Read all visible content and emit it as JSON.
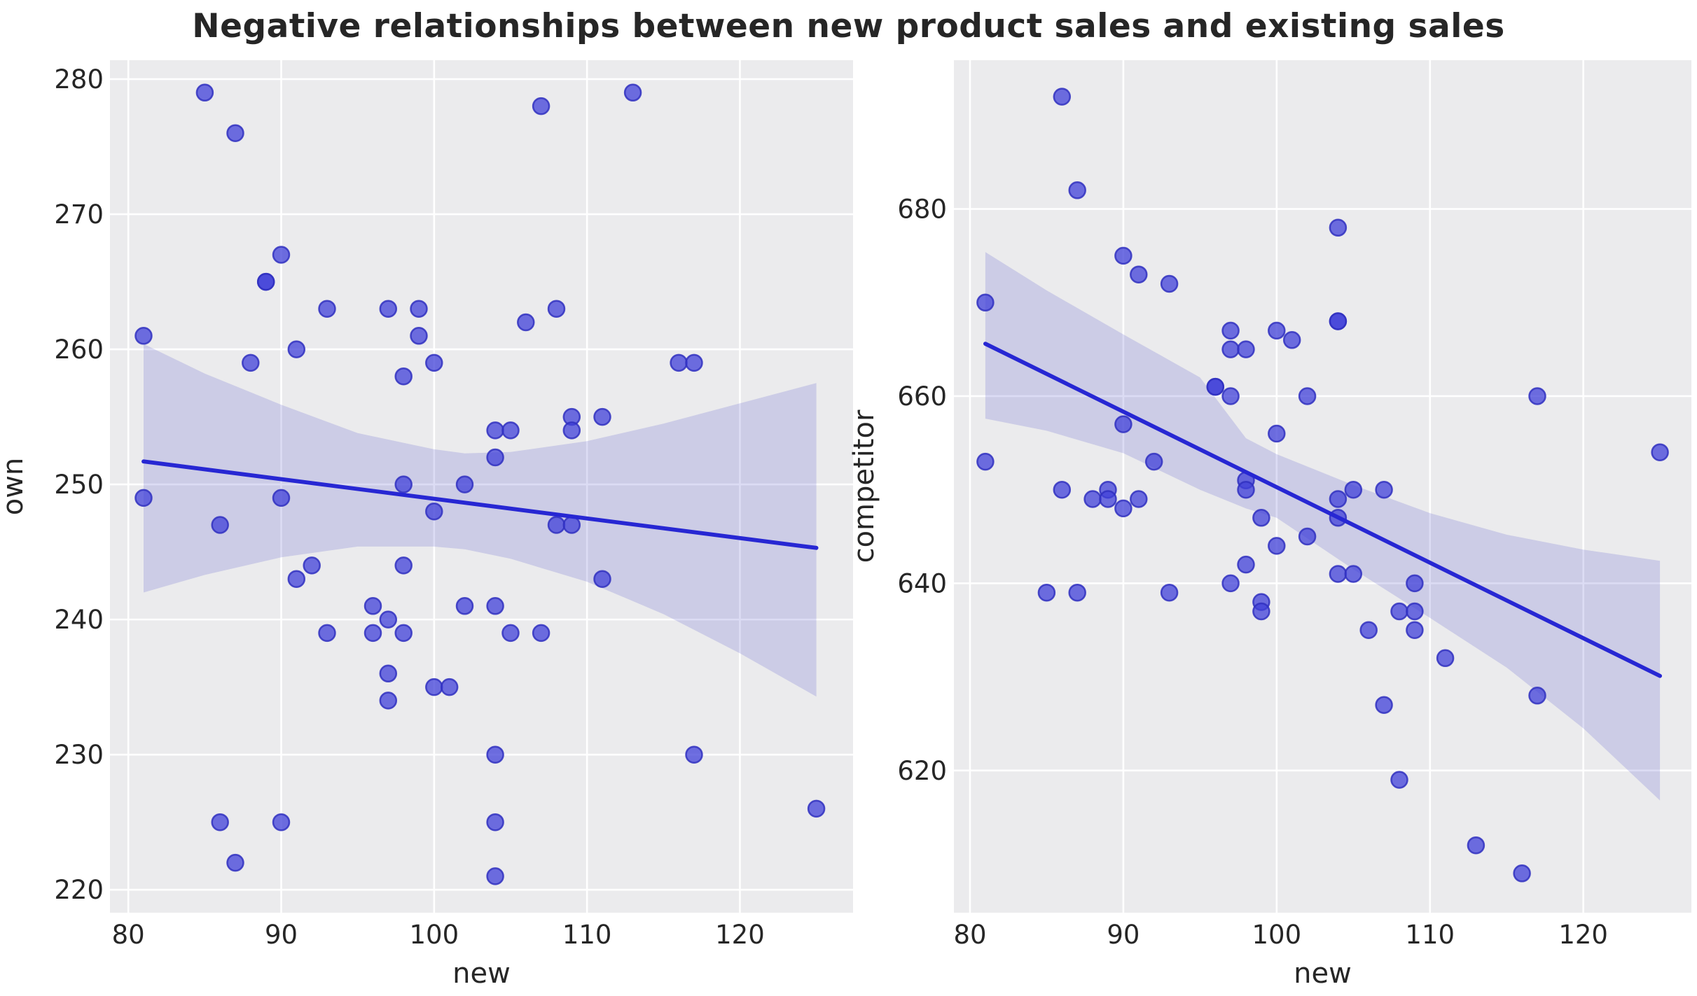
{
  "title": "Negative relationships between new product sales and existing sales",
  "style": {
    "figure_background": "#ffffff",
    "axes_background": "#ebebed",
    "grid_color": "#ffffff",
    "dot_color": "#4040d8",
    "dot_edge_color": "#3030c0",
    "line_color": "#2727d3",
    "band_color": "#6060cf",
    "text_color": "#262626"
  },
  "chart_data": [
    {
      "type": "scatter",
      "name": "own-vs-new",
      "xlabel": "new",
      "ylabel": "own",
      "xlim": [
        78.8,
        127.4
      ],
      "ylim": [
        218.3,
        281.4
      ],
      "xticks": [
        80,
        90,
        100,
        110,
        120
      ],
      "yticks": [
        220,
        230,
        240,
        250,
        260,
        270,
        280
      ],
      "grid": true,
      "legend": null,
      "points": [
        [
          81,
          261
        ],
        [
          81,
          249
        ],
        [
          85,
          279
        ],
        [
          86,
          247
        ],
        [
          86,
          225
        ],
        [
          87,
          276
        ],
        [
          87,
          222
        ],
        [
          88,
          259
        ],
        [
          89,
          265
        ],
        [
          89,
          265
        ],
        [
          90,
          267
        ],
        [
          90,
          249
        ],
        [
          90,
          225
        ],
        [
          91,
          260
        ],
        [
          91,
          243
        ],
        [
          92,
          244
        ],
        [
          93,
          263
        ],
        [
          93,
          239
        ],
        [
          96,
          241
        ],
        [
          96,
          239
        ],
        [
          97,
          263
        ],
        [
          97,
          240
        ],
        [
          97,
          236
        ],
        [
          97,
          234
        ],
        [
          98,
          258
        ],
        [
          98,
          250
        ],
        [
          98,
          244
        ],
        [
          98,
          239
        ],
        [
          99,
          263
        ],
        [
          99,
          261
        ],
        [
          100,
          259
        ],
        [
          100,
          248
        ],
        [
          100,
          235
        ],
        [
          101,
          235
        ],
        [
          102,
          250
        ],
        [
          102,
          241
        ],
        [
          104,
          254
        ],
        [
          104,
          252
        ],
        [
          104,
          241
        ],
        [
          104,
          230
        ],
        [
          104,
          225
        ],
        [
          104,
          221
        ],
        [
          105,
          254
        ],
        [
          105,
          239
        ],
        [
          106,
          262
        ],
        [
          107,
          278
        ],
        [
          107,
          239
        ],
        [
          108,
          263
        ],
        [
          108,
          247
        ],
        [
          109,
          255
        ],
        [
          109,
          254
        ],
        [
          109,
          247
        ],
        [
          111,
          255
        ],
        [
          111,
          243
        ],
        [
          113,
          279
        ],
        [
          116,
          259
        ],
        [
          117,
          259
        ],
        [
          117,
          230
        ],
        [
          125,
          226
        ]
      ],
      "regression_line": {
        "x1": 81,
        "y1": 251.7,
        "x2": 125,
        "y2": 245.3
      },
      "ci_band": {
        "x": [
          81,
          85,
          90,
          95,
          100,
          102,
          105,
          110,
          115,
          120,
          125
        ],
        "upper": [
          260.4,
          258.2,
          255.9,
          253.8,
          252.6,
          252.3,
          252.4,
          253.2,
          254.5,
          256.0,
          257.5
        ],
        "lower": [
          242.0,
          243.3,
          244.6,
          245.4,
          245.4,
          245.2,
          244.5,
          242.8,
          240.4,
          237.5,
          234.3
        ]
      }
    },
    {
      "type": "scatter",
      "name": "competitor-vs-new",
      "xlabel": "new",
      "ylabel": "competitor",
      "xlim": [
        78.95,
        127.05
      ],
      "ylim": [
        604.8,
        695.9
      ],
      "xticks": [
        80,
        90,
        100,
        110,
        120
      ],
      "yticks": [
        620,
        640,
        660,
        680
      ],
      "grid": true,
      "legend": null,
      "points": [
        [
          81,
          670
        ],
        [
          81,
          653
        ],
        [
          85,
          639
        ],
        [
          86,
          692
        ],
        [
          86,
          650
        ],
        [
          87,
          682
        ],
        [
          87,
          639
        ],
        [
          88,
          649
        ],
        [
          89,
          650
        ],
        [
          89,
          649
        ],
        [
          90,
          675
        ],
        [
          90,
          657
        ],
        [
          90,
          648
        ],
        [
          91,
          673
        ],
        [
          91,
          649
        ],
        [
          92,
          653
        ],
        [
          93,
          672
        ],
        [
          93,
          639
        ],
        [
          96,
          661
        ],
        [
          96,
          661
        ],
        [
          97,
          667
        ],
        [
          97,
          665
        ],
        [
          97,
          660
        ],
        [
          97,
          640
        ],
        [
          98,
          665
        ],
        [
          98,
          651
        ],
        [
          98,
          650
        ],
        [
          98,
          642
        ],
        [
          99,
          647
        ],
        [
          99,
          638
        ],
        [
          99,
          637
        ],
        [
          100,
          667
        ],
        [
          100,
          656
        ],
        [
          100,
          644
        ],
        [
          101,
          666
        ],
        [
          102,
          660
        ],
        [
          102,
          645
        ],
        [
          104,
          678
        ],
        [
          104,
          668
        ],
        [
          104,
          668
        ],
        [
          104,
          649
        ],
        [
          104,
          647
        ],
        [
          104,
          641
        ],
        [
          105,
          650
        ],
        [
          105,
          641
        ],
        [
          106,
          635
        ],
        [
          107,
          650
        ],
        [
          107,
          627
        ],
        [
          108,
          637
        ],
        [
          108,
          619
        ],
        [
          109,
          640
        ],
        [
          109,
          637
        ],
        [
          109,
          635
        ],
        [
          111,
          632
        ],
        [
          113,
          612
        ],
        [
          116,
          609
        ],
        [
          117,
          660
        ],
        [
          117,
          628
        ],
        [
          125,
          654
        ]
      ],
      "regression_line": {
        "x1": 81,
        "y1": 665.6,
        "x2": 125,
        "y2": 630.1
      },
      "ci_band": {
        "x": [
          81,
          85,
          90,
          95,
          98,
          100,
          105,
          110,
          115,
          120,
          125
        ],
        "upper": [
          675.4,
          671.3,
          666.6,
          662.0,
          655.5,
          653.8,
          650.5,
          647.5,
          645.2,
          643.6,
          642.4
        ],
        "lower": [
          657.6,
          656.3,
          653.9,
          650.0,
          648.0,
          647.0,
          641.5,
          636.3,
          631.0,
          624.5,
          616.8
        ]
      }
    }
  ]
}
